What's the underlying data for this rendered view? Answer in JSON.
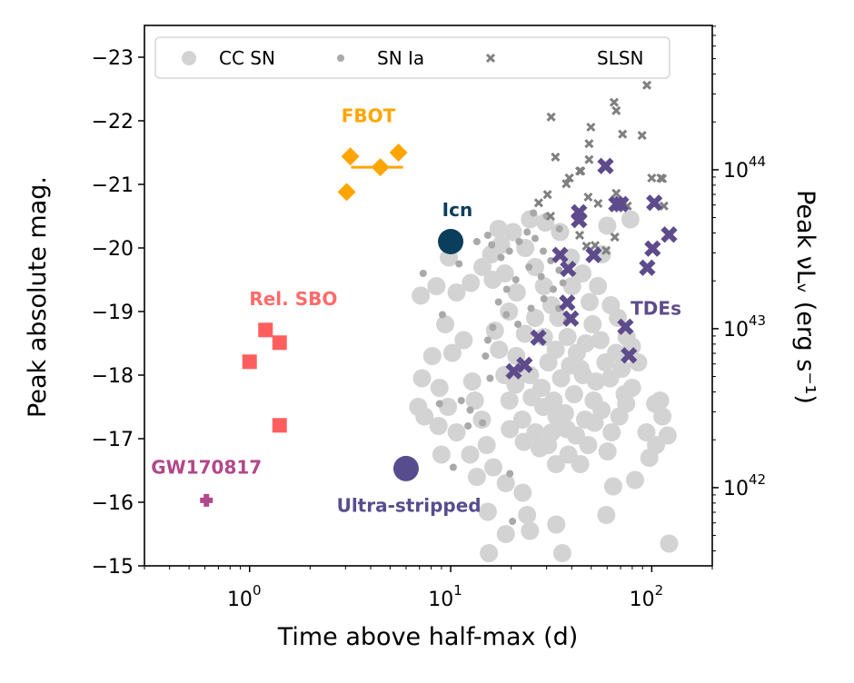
{
  "chart_data": {
    "type": "scatter",
    "title": "",
    "xlabel": "Time above half-max (d)",
    "ylabel": "Peak absolute mag.",
    "ylabel_right": "Peak νLᵥ (erg s⁻¹)",
    "xscale": "log",
    "xlim": [
      0.3,
      200
    ],
    "ylim": [
      -15,
      -23.5
    ],
    "y_inverted": true,
    "x_ticks": [
      {
        "value": 1,
        "label_base": "10",
        "label_exp": "0"
      },
      {
        "value": 10,
        "label_base": "10",
        "label_exp": "1"
      },
      {
        "value": 100,
        "label_base": "10",
        "label_exp": "2"
      }
    ],
    "y_ticks": [
      -23,
      -22,
      -21,
      -20,
      -19,
      -18,
      -17,
      -16,
      -15
    ],
    "y_tick_labels": [
      "−23",
      "−22",
      "−21",
      "−20",
      "−19",
      "−18",
      "−17",
      "−16",
      "−15"
    ],
    "right_axis": {
      "scale": "log",
      "mag_of_1e44": -21.23,
      "mag_per_decade": 2.5,
      "ticks": [
        {
          "value": 1e+44,
          "label_base": "10",
          "label_exp": "44"
        },
        {
          "value": 1e+43,
          "label_base": "10",
          "label_exp": "43"
        },
        {
          "value": 1e+42,
          "label_base": "10",
          "label_exp": "42"
        }
      ]
    },
    "grid": false,
    "legend": {
      "placement": "top",
      "entries": [
        {
          "label": "CC SN",
          "marker": "circle-large",
          "color": "#d3d3d3"
        },
        {
          "label": "SN Ia",
          "marker": "circle-small",
          "color": "#a9a9a9"
        },
        {
          "label": "SLSN",
          "marker": "x-small",
          "color": "#808080"
        }
      ]
    },
    "series": [
      {
        "name": "CC SN",
        "marker": "circle-large",
        "color": "#d3d3d3",
        "points": [
          [
            9.8,
            -19.85
          ],
          [
            8.5,
            -19.4
          ],
          [
            10.7,
            -19.3
          ],
          [
            7.1,
            -19.25
          ],
          [
            9.4,
            -18.8
          ],
          [
            11.6,
            -18.55
          ],
          [
            10.2,
            -18.35
          ],
          [
            8.1,
            -18.3
          ],
          [
            7.2,
            -17.95
          ],
          [
            8.8,
            -17.8
          ],
          [
            6.9,
            -17.5
          ],
          [
            9.7,
            -17.5
          ],
          [
            7.4,
            -17.35
          ],
          [
            8.7,
            -17.2
          ],
          [
            10.7,
            -17.1
          ],
          [
            12.8,
            -17.9
          ],
          [
            13.2,
            -17.6
          ],
          [
            14.3,
            -17.3
          ],
          [
            12.5,
            -16.75
          ],
          [
            15.1,
            -16.9
          ],
          [
            9.0,
            -16.75
          ],
          [
            13.5,
            -16.4
          ],
          [
            16.3,
            -16.55
          ],
          [
            15.3,
            -15.85
          ],
          [
            18.8,
            -16.3
          ],
          [
            22.8,
            -16.15
          ],
          [
            18.8,
            -15.5
          ],
          [
            24.0,
            -15.8
          ],
          [
            33.5,
            -15.65
          ],
          [
            35.9,
            -15.2
          ],
          [
            15.5,
            -15.2
          ],
          [
            24.8,
            -15.55
          ],
          [
            59.4,
            -15.8
          ],
          [
            122,
            -15.35
          ],
          [
            64.3,
            -16.25
          ],
          [
            82.6,
            -16.35
          ],
          [
            97.3,
            -16.7
          ],
          [
            105,
            -16.9
          ],
          [
            94.1,
            -17.1
          ],
          [
            120,
            -17.05
          ],
          [
            113,
            -17.35
          ],
          [
            110,
            -17.6
          ],
          [
            104,
            -17.55
          ],
          [
            74.6,
            -17.55
          ],
          [
            79.8,
            -17.8
          ],
          [
            60.3,
            -16.8
          ],
          [
            52,
            -17.25
          ],
          [
            48.3,
            -16.9
          ],
          [
            38.5,
            -16.75
          ],
          [
            33.4,
            -16.6
          ],
          [
            30.5,
            -16.9
          ],
          [
            26.4,
            -17.1
          ],
          [
            22.7,
            -17.3
          ],
          [
            19.6,
            -17.6
          ],
          [
            18.5,
            -18.0
          ],
          [
            17.4,
            -18.4
          ],
          [
            16.6,
            -18.7
          ],
          [
            19.5,
            -19.0
          ],
          [
            21.3,
            -19.3
          ],
          [
            18.6,
            -19.6
          ],
          [
            16.2,
            -19.5
          ],
          [
            15.9,
            -19.9
          ],
          [
            17.8,
            -20.05
          ],
          [
            20.4,
            -20.25
          ],
          [
            23.5,
            -20.0
          ],
          [
            26.3,
            -19.7
          ],
          [
            29.1,
            -19.4
          ],
          [
            31.7,
            -19.1
          ],
          [
            26.3,
            -18.9
          ],
          [
            23.4,
            -18.65
          ],
          [
            21.2,
            -18.3
          ],
          [
            24.8,
            -18.0
          ],
          [
            28.3,
            -17.8
          ],
          [
            32.5,
            -17.6
          ],
          [
            37.0,
            -17.4
          ],
          [
            41.1,
            -17.7
          ],
          [
            45.5,
            -18.0
          ],
          [
            42.4,
            -18.35
          ],
          [
            38.1,
            -18.6
          ],
          [
            34.3,
            -18.9
          ],
          [
            30.6,
            -18.2
          ],
          [
            35.4,
            -17.95
          ],
          [
            39.2,
            -18.15
          ],
          [
            47.0,
            -18.5
          ],
          [
            50.8,
            -18.8
          ],
          [
            55.6,
            -18.55
          ],
          [
            58.8,
            -18.2
          ],
          [
            62.1,
            -17.95
          ],
          [
            66.4,
            -18.35
          ],
          [
            70.9,
            -18.1
          ],
          [
            73.3,
            -17.7
          ],
          [
            69.0,
            -17.35
          ],
          [
            63.2,
            -17.1
          ],
          [
            56.3,
            -17.45
          ],
          [
            51.4,
            -17.6
          ],
          [
            46.6,
            -17.3
          ],
          [
            42.0,
            -17.05
          ],
          [
            37.8,
            -17.15
          ],
          [
            33.6,
            -17.35
          ],
          [
            28.9,
            -17.5
          ],
          [
            25.3,
            -17.65
          ],
          [
            21.0,
            -17.85
          ],
          [
            19.7,
            -17.15
          ],
          [
            23.1,
            -16.95
          ],
          [
            27.7,
            -16.85
          ],
          [
            44.1,
            -16.6
          ],
          [
            49.1,
            -19.15
          ],
          [
            54.0,
            -19.4
          ],
          [
            45.2,
            -19.6
          ],
          [
            40.2,
            -19.4
          ],
          [
            56.6,
            -19.9
          ],
          [
            62.6,
            -19.1
          ],
          [
            67.9,
            -18.9
          ],
          [
            75.0,
            -18.6
          ],
          [
            79.7,
            -18.45
          ],
          [
            85.6,
            -18.2
          ],
          [
            60.1,
            -20.35
          ],
          [
            78.3,
            -20.45
          ],
          [
            35.0,
            -20.25
          ],
          [
            29.6,
            -20.4
          ],
          [
            17.3,
            -20.3
          ],
          [
            24.8,
            -20.45
          ],
          [
            39.6,
            -19.85
          ],
          [
            14.4,
            -19.7
          ],
          [
            12.6,
            -19.45
          ],
          [
            44.2,
            -18.1
          ],
          [
            52.8,
            -17.9
          ],
          [
            33.3,
            -18.4
          ],
          [
            29.1,
            -18.6
          ],
          [
            31.8,
            -17.1
          ]
        ]
      },
      {
        "name": "SN Ia",
        "marker": "circle-small",
        "color": "#a9a9a9",
        "points": [
          [
            7.3,
            -19.6
          ],
          [
            11.0,
            -19.75
          ],
          [
            13.5,
            -20.1
          ],
          [
            15.3,
            -20.2
          ],
          [
            16.0,
            -20.05
          ],
          [
            17.8,
            -19.85
          ],
          [
            19.6,
            -19.95
          ],
          [
            21.9,
            -20.1
          ],
          [
            24.0,
            -20.25
          ],
          [
            26.3,
            -20.15
          ],
          [
            28.9,
            -19.95
          ],
          [
            31.5,
            -19.8
          ],
          [
            34.6,
            -19.65
          ],
          [
            36.2,
            -19.45
          ],
          [
            32.4,
            -19.35
          ],
          [
            28.2,
            -19.55
          ],
          [
            24.5,
            -19.7
          ],
          [
            21.1,
            -19.5
          ],
          [
            19.0,
            -19.35
          ],
          [
            17.3,
            -19.15
          ],
          [
            18.9,
            -18.95
          ],
          [
            21.6,
            -18.8
          ],
          [
            25.1,
            -19.05
          ],
          [
            29.1,
            -19.2
          ],
          [
            34.5,
            -19.05
          ],
          [
            37.9,
            -18.85
          ],
          [
            16.2,
            -18.75
          ],
          [
            15.3,
            -18.55
          ],
          [
            14.9,
            -18.3
          ],
          [
            15.7,
            -17.95
          ],
          [
            9.1,
            -18.95
          ],
          [
            8.8,
            -17.55
          ],
          [
            11.3,
            -17.6
          ],
          [
            12.5,
            -17.45
          ],
          [
            12.2,
            -17.2
          ],
          [
            14.4,
            -17.25
          ],
          [
            10.3,
            -16.55
          ],
          [
            19.7,
            -16.45
          ],
          [
            20.3,
            -15.7
          ],
          [
            30.0,
            -20.5
          ],
          [
            34.7,
            -20.3
          ],
          [
            25.8,
            -20.55
          ]
        ]
      },
      {
        "name": "SLSN",
        "marker": "x-small",
        "color": "#808080",
        "points": [
          [
            94.6,
            -22.56
          ],
          [
            65.0,
            -22.29
          ],
          [
            66.6,
            -22.16
          ],
          [
            31.6,
            -22.06
          ],
          [
            49.8,
            -21.9
          ],
          [
            71.6,
            -21.79
          ],
          [
            89.5,
            -21.77
          ],
          [
            48.8,
            -21.64
          ],
          [
            33.2,
            -21.43
          ],
          [
            48.8,
            -21.39
          ],
          [
            44.4,
            -21.21
          ],
          [
            38.9,
            -21.1
          ],
          [
            100.0,
            -21.1
          ],
          [
            111,
            -21.1
          ],
          [
            43.8,
            -21.21
          ],
          [
            38.9,
            -21.1
          ],
          [
            37.6,
            -21.01
          ],
          [
            30.3,
            -20.84
          ],
          [
            27.4,
            -20.71
          ],
          [
            48.3,
            -20.8
          ],
          [
            54.1,
            -20.7
          ],
          [
            66.6,
            -20.86
          ],
          [
            75.7,
            -20.66
          ],
          [
            113,
            -21.09
          ],
          [
            115,
            -20.66
          ],
          [
            31.4,
            -20.5
          ],
          [
            43.8,
            -20.2
          ],
          [
            47.4,
            -20.03
          ],
          [
            52.3,
            -20.04
          ],
          [
            65.5,
            -20.17
          ],
          [
            59.3,
            -19.96
          ]
        ]
      },
      {
        "name": "TDEs",
        "marker": "x-large",
        "color": "#5e4b8b",
        "points": [
          [
            58.9,
            -21.29
          ],
          [
            43.5,
            -20.56
          ],
          [
            43.5,
            -20.44
          ],
          [
            66.7,
            -20.69
          ],
          [
            70.3,
            -20.69
          ],
          [
            103,
            -20.71
          ],
          [
            122,
            -20.21
          ],
          [
            101,
            -19.99
          ],
          [
            95,
            -19.69
          ],
          [
            35,
            -19.89
          ],
          [
            38.4,
            -19.67
          ],
          [
            51.4,
            -19.89
          ],
          [
            38,
            -19.14
          ],
          [
            39.6,
            -18.89
          ],
          [
            74,
            -18.76
          ],
          [
            77,
            -18.31
          ],
          [
            27.3,
            -18.59
          ],
          [
            23.3,
            -18.16
          ],
          [
            20.6,
            -18.06
          ]
        ]
      },
      {
        "name": "FBOT",
        "marker": "diamond",
        "color": "#ffa500",
        "points": [
          [
            3.17,
            -21.44
          ],
          [
            5.5,
            -21.5
          ],
          [
            4.47,
            -21.27
          ],
          [
            3.04,
            -20.88
          ]
        ],
        "errorbar": {
          "y": -21.27,
          "x_low": 3.2,
          "x_high": 5.8
        }
      },
      {
        "name": "Icn",
        "marker": "circle-xl",
        "color": "#0b3d5c",
        "points": [
          [
            10.0,
            -20.1
          ]
        ]
      },
      {
        "name": "Rel. SBO",
        "marker": "square",
        "color": "#ff5e5e",
        "points": [
          [
            1.2,
            -18.71
          ],
          [
            1.41,
            -18.51
          ],
          [
            1.0,
            -18.21
          ],
          [
            1.41,
            -17.21
          ]
        ]
      },
      {
        "name": "GW170817",
        "marker": "plus",
        "color": "#b2478a",
        "points": [
          [
            0.61,
            -16.03
          ]
        ]
      },
      {
        "name": "Ultra-stripped",
        "marker": "circle-xl",
        "color": "#574d8e",
        "points": [
          [
            6.0,
            -16.53
          ]
        ]
      }
    ],
    "annotations": [
      {
        "text": "FBOT",
        "x": 3.9,
        "y": -21.98,
        "color": "#ffa500"
      },
      {
        "text": "Icn",
        "x": 10.8,
        "y": -20.5,
        "color": "#0b3d5c"
      },
      {
        "text": "Rel. SBO",
        "x": 1.65,
        "y": -19.1,
        "color": "#ff6b6b"
      },
      {
        "text": "TDEs",
        "x": 105,
        "y": -18.95,
        "color": "#5e4b8b"
      },
      {
        "text": "GW170817",
        "x": 0.61,
        "y": -16.45,
        "color": "#b2478a"
      },
      {
        "text": "Ultra-stripped",
        "x": 6.2,
        "y": -15.85,
        "color": "#574d8e"
      }
    ]
  }
}
